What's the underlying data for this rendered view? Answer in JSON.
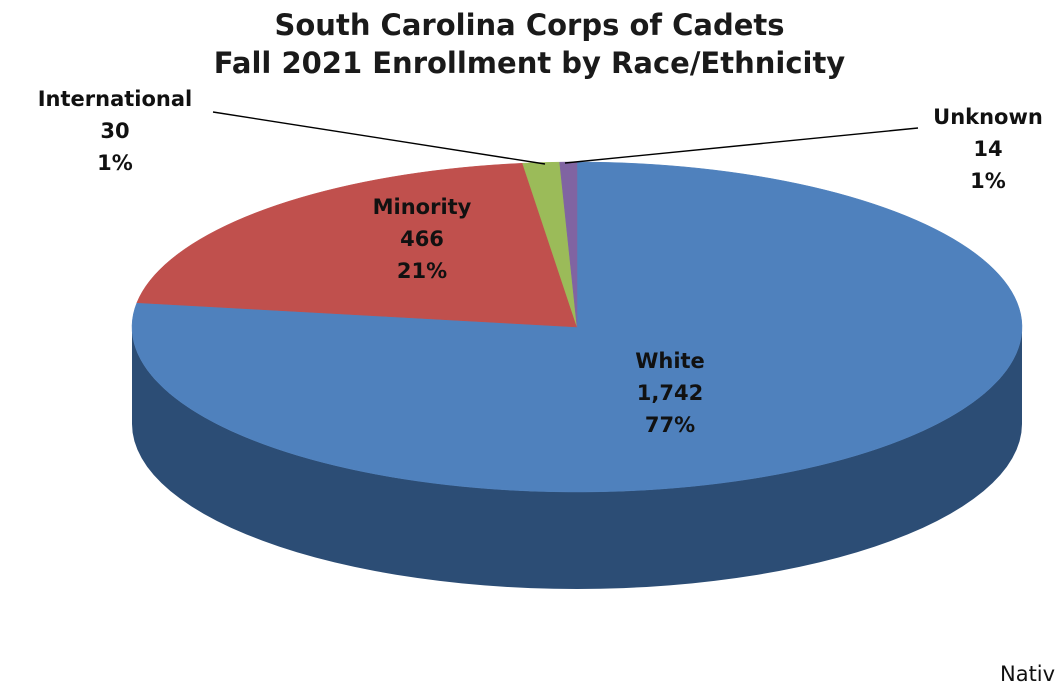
{
  "chart_data": {
    "type": "pie",
    "title_line1": "South Carolina Corps of Cadets",
    "title_line2": "Fall 2021 Enrollment  by Race/Ethnicity",
    "three_d": true,
    "slices": [
      {
        "name": "White",
        "count_label": "1,742",
        "value": 1742,
        "percent_label": "77%",
        "color": "#4f81bd",
        "side_color": "#2c4d75"
      },
      {
        "name": "Minority",
        "count_label": "466",
        "value": 466,
        "percent_label": "21%",
        "color": "#c0504d",
        "side_color": "#8c3836"
      },
      {
        "name": "International",
        "count_label": "30",
        "value": 30,
        "percent_label": "1%",
        "color": "#9bbb59",
        "side_color": "#6f8a3f"
      },
      {
        "name": "Unknown",
        "count_label": "14",
        "value": 14,
        "percent_label": "1%",
        "color": "#8064a2",
        "side_color": "#5c4776"
      }
    ],
    "truncated_label": "Nativ"
  }
}
